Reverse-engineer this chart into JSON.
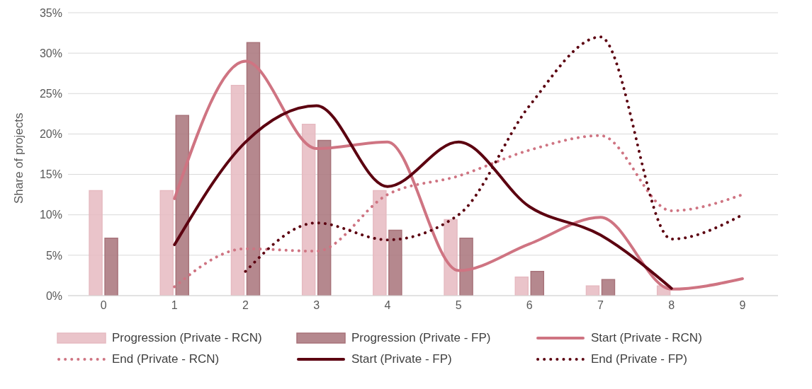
{
  "chart_data": {
    "type": "bar",
    "ylabel": "Share of projects",
    "categories": [
      "0",
      "1",
      "2",
      "3",
      "4",
      "5",
      "6",
      "7",
      "8",
      "9"
    ],
    "ylim": [
      0,
      35
    ],
    "yticks": [
      {
        "value": 0,
        "label": "0%"
      },
      {
        "value": 5,
        "label": "5%"
      },
      {
        "value": 10,
        "label": "10%"
      },
      {
        "value": 15,
        "label": "15%"
      },
      {
        "value": 20,
        "label": "20%"
      },
      {
        "value": 25,
        "label": "25%"
      },
      {
        "value": 30,
        "label": "30%"
      },
      {
        "value": 35,
        "label": "35%"
      }
    ],
    "grid": "y",
    "legend": "bottom",
    "marker": "none",
    "series": [
      {
        "name": "Progression (Private - RCN)",
        "color": "#e6bac1",
        "values": [
          13,
          13,
          26,
          21.2,
          13,
          9.4,
          2.3,
          1.2,
          1.2,
          null
        ]
      },
      {
        "name": "Progression (Private - FP)",
        "color": "#a8737a",
        "values": [
          7.1,
          22.3,
          31.3,
          19.2,
          8.1,
          7.1,
          3.0,
          2.0,
          null,
          null
        ]
      },
      {
        "name": "Start (Private - RCN)",
        "type": "line",
        "line_style": "solid",
        "color": "#cf7482",
        "values": [
          null,
          12,
          29,
          18.2,
          19,
          3.1,
          6.4,
          9.7,
          0.8,
          2.1
        ]
      },
      {
        "name": "End (Private - RCN)",
        "type": "line",
        "line_style": "dotted",
        "color": "#cf7482",
        "values": [
          null,
          1.1,
          5.8,
          5.5,
          12.5,
          14.8,
          18,
          19.8,
          10.5,
          12.5
        ]
      },
      {
        "name": "Start (Private - FP)",
        "type": "line",
        "line_style": "solid",
        "color": "#5c0010",
        "values": [
          null,
          6.3,
          19,
          23.5,
          13.5,
          19,
          11,
          7.5,
          0.9,
          null
        ]
      },
      {
        "name": "End (Private - FP)",
        "type": "line",
        "line_style": "dotted",
        "color": "#5c0010",
        "values": [
          null,
          null,
          3.0,
          9,
          6.9,
          10,
          23.5,
          32,
          7,
          10
        ]
      }
    ]
  }
}
